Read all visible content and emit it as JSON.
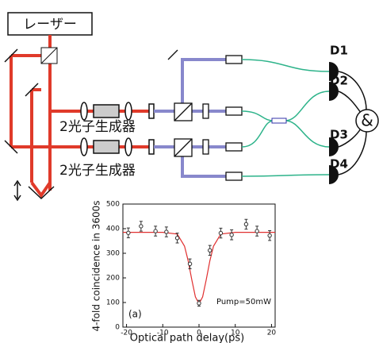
{
  "diagram": {
    "laser": "レーザー",
    "generators": [
      "2光子生成器",
      "2光子生成器"
    ],
    "detectors": [
      "D1",
      "D2",
      "D3",
      "D4"
    ],
    "coincidence": "&"
  },
  "chart_data": {
    "type": "scatter",
    "xlabel": "Optical path delay(ps)",
    "ylabel": "4-fold coincidence in 3600s",
    "annotations": [
      "(a)",
      "Pump=50mW"
    ],
    "x": [
      -19.5,
      -16,
      -12,
      -9,
      -6,
      -2.5,
      0,
      3,
      6,
      9,
      13,
      16,
      19.5
    ],
    "values": [
      383,
      410,
      390,
      387,
      362,
      257,
      97,
      312,
      382,
      375,
      418,
      390,
      372
    ],
    "errors": [
      20,
      20,
      20,
      20,
      20,
      20,
      12,
      20,
      20,
      20,
      20,
      20,
      20
    ],
    "color": "#333333",
    "fit": {
      "color": "#e03030",
      "x": [
        -21,
        -10,
        -6,
        -4,
        -3,
        -2,
        -1,
        0,
        1,
        2,
        3,
        4,
        6,
        10,
        21
      ],
      "values": [
        385,
        385,
        378,
        329,
        270,
        193,
        123,
        95,
        123,
        193,
        270,
        329,
        378,
        385,
        385
      ]
    },
    "xlim": [
      -21,
      21
    ],
    "ylim": [
      0,
      500
    ],
    "xticks": [
      -20,
      -10,
      0,
      10,
      20
    ],
    "yticks": [
      0,
      100,
      200,
      300,
      400,
      500
    ]
  }
}
